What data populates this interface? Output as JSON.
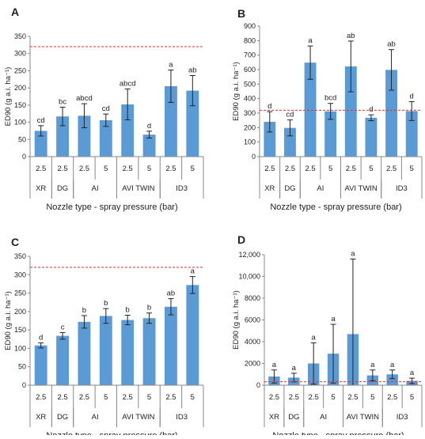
{
  "chart_data": [
    {
      "panel": "A",
      "type": "bar",
      "ylabel": "ED90 (g a.i. ha⁻¹)",
      "xlabel": "Nozzle type - spray pressure (bar)",
      "ylim": [
        0,
        350
      ],
      "yticks": [
        0,
        50,
        100,
        150,
        200,
        250,
        300,
        350
      ],
      "ytick_labels": [
        "0",
        "50",
        "100",
        "150",
        "200",
        "250",
        "300",
        "350"
      ],
      "reference_line": 320,
      "categories": [
        "2.5",
        "2.5",
        "2.5",
        "5",
        "2.5",
        "5",
        "2.5",
        "5"
      ],
      "groups": [
        {
          "label": "XR",
          "span": [
            0,
            0
          ]
        },
        {
          "label": "DG",
          "span": [
            1,
            1
          ]
        },
        {
          "label": "AI",
          "span": [
            2,
            3
          ]
        },
        {
          "label": "AVI TWIN",
          "span": [
            4,
            5
          ]
        },
        {
          "label": "ID3",
          "span": [
            6,
            7
          ]
        }
      ],
      "values": [
        75,
        117,
        119,
        106,
        152,
        64,
        205,
        192
      ],
      "errors": [
        15,
        27,
        35,
        18,
        45,
        10,
        47,
        44
      ],
      "letters": [
        "cd",
        "bc",
        "abcd",
        "cd",
        "abcd",
        "d",
        "a",
        "ab"
      ],
      "grid": false,
      "color": "#5b9bd5"
    },
    {
      "panel": "B",
      "type": "bar",
      "ylabel": "ED90 (g a.i. ha⁻¹)",
      "xlabel": "Nozzle type - spray pressure (bar)",
      "ylim": [
        0,
        900
      ],
      "yticks": [
        0,
        100,
        200,
        300,
        400,
        500,
        600,
        700,
        800,
        900
      ],
      "ytick_labels": [
        "0",
        "100",
        "200",
        "300",
        "400",
        "500",
        "600",
        "700",
        "800",
        "900"
      ],
      "reference_line": 320,
      "categories": [
        "2.5",
        "2.5",
        "2.5",
        "5",
        "2.5",
        "5",
        "2.5",
        "5"
      ],
      "groups": [
        {
          "label": "XR",
          "span": [
            0,
            0
          ]
        },
        {
          "label": "DG",
          "span": [
            1,
            1
          ]
        },
        {
          "label": "AI",
          "span": [
            2,
            3
          ]
        },
        {
          "label": "AVI TWIN",
          "span": [
            4,
            5
          ]
        },
        {
          "label": "ID3",
          "span": [
            6,
            7
          ]
        }
      ],
      "values": [
        240,
        198,
        648,
        312,
        622,
        268,
        598,
        314
      ],
      "errors": [
        70,
        55,
        115,
        55,
        175,
        20,
        140,
        65
      ],
      "letters": [
        "d",
        "cd",
        "a",
        "bcd",
        "ab",
        "d",
        "ab",
        "d"
      ],
      "grid": false,
      "color": "#5b9bd5"
    },
    {
      "panel": "C",
      "type": "bar",
      "ylabel": "ED90 (g a.i. ha⁻¹)",
      "xlabel": "Nozzle type - spray pressure (bar)",
      "ylim": [
        0,
        350
      ],
      "yticks": [
        0,
        50,
        100,
        150,
        200,
        250,
        300,
        350
      ],
      "ytick_labels": [
        "0",
        "50",
        "100",
        "150",
        "200",
        "250",
        "300",
        "350"
      ],
      "reference_line": 320,
      "categories": [
        "2.5",
        "2.5",
        "2.5",
        "5",
        "2.5",
        "5",
        "2.5",
        "5"
      ],
      "groups": [
        {
          "label": "XR",
          "span": [
            0,
            0
          ]
        },
        {
          "label": "DG",
          "span": [
            1,
            1
          ]
        },
        {
          "label": "AI",
          "span": [
            2,
            3
          ]
        },
        {
          "label": "AVI TWIN",
          "span": [
            4,
            5
          ]
        },
        {
          "label": "ID3",
          "span": [
            6,
            7
          ]
        }
      ],
      "values": [
        108,
        134,
        172,
        188,
        177,
        182,
        213,
        272
      ],
      "errors": [
        7,
        9,
        17,
        20,
        13,
        14,
        22,
        23
      ],
      "letters": [
        "d",
        "c",
        "b",
        "b",
        "b",
        "b",
        "ab",
        "a"
      ],
      "grid": false,
      "color": "#5b9bd5"
    },
    {
      "panel": "D",
      "type": "bar",
      "ylabel": "ED90 (g a.i. ha⁻¹)",
      "xlabel": "Nozzle type - spray pressure (bar)",
      "ylim": [
        0,
        12000
      ],
      "yticks": [
        0,
        2000,
        4000,
        6000,
        8000,
        10000,
        12000
      ],
      "ytick_labels": [
        "0",
        "2000",
        "4000",
        "6000",
        "8000",
        "10,000",
        "12,000"
      ],
      "reference_line": 320,
      "categories": [
        "2.5",
        "2.5",
        "2.5",
        "5",
        "2.5",
        "5",
        "2.5",
        "5"
      ],
      "groups": [
        {
          "label": "XR",
          "span": [
            0,
            0
          ]
        },
        {
          "label": "DG",
          "span": [
            1,
            1
          ]
        },
        {
          "label": "AI",
          "span": [
            2,
            3
          ]
        },
        {
          "label": "AVI TWIN",
          "span": [
            4,
            5
          ]
        },
        {
          "label": "ID3",
          "span": [
            6,
            7
          ]
        }
      ],
      "values": [
        800,
        700,
        2000,
        2900,
        4700,
        900,
        1000,
        400
      ],
      "errors": [
        600,
        400,
        1900,
        2700,
        6900,
        500,
        400,
        250
      ],
      "letters": [
        "a",
        "a",
        "a",
        "a",
        "a",
        "a",
        "a",
        "a"
      ],
      "grid": false,
      "color": "#5b9bd5"
    }
  ]
}
